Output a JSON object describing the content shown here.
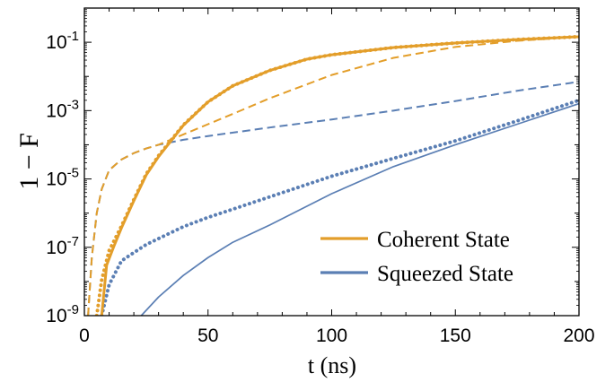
{
  "chart_data": {
    "type": "line",
    "title": "",
    "xlabel": "t (ns)",
    "ylabel": "1 − F",
    "xlim": [
      0,
      200
    ],
    "ylim_log10": [
      -9,
      0
    ],
    "yscale": "log",
    "x_ticks": [
      0,
      50,
      100,
      150,
      200
    ],
    "x_tick_labels": [
      "0",
      "50",
      "100",
      "150",
      "200"
    ],
    "y_ticks_log10": [
      -9,
      -7,
      -5,
      -3,
      -1
    ],
    "y_tick_labels": [
      "10-9",
      "10-7",
      "10-5",
      "10-3",
      "10-1"
    ],
    "legend_position": "bottom-right",
    "legend": [
      {
        "label": "Coherent State",
        "color": "#E39E2A"
      },
      {
        "label": "Squeezed State",
        "color": "#5B7FB4"
      }
    ],
    "series": [
      {
        "name": "Coherent State",
        "color": "#E39E2A",
        "style": "solid",
        "x": [
          7,
          9,
          12,
          15,
          20,
          25,
          30,
          40,
          50,
          60,
          75,
          90,
          100,
          125,
          150,
          175,
          200
        ],
        "y": [
          1e-09,
          3e-08,
          1.1e-07,
          3.7e-07,
          2.3e-06,
          1.3e-05,
          4.5e-05,
          0.00037,
          0.0018,
          0.0053,
          0.015,
          0.032,
          0.043,
          0.07,
          0.095,
          0.12,
          0.145
        ]
      },
      {
        "name": "",
        "color": "#E39E2A",
        "style": "dotted",
        "x": [
          5,
          7,
          10,
          15,
          20,
          25,
          30,
          40,
          50,
          60,
          75,
          90,
          100,
          125,
          150,
          175,
          200
        ],
        "y": [
          1e-09,
          1.1e-08,
          8e-08,
          4.2e-07,
          2.5e-06,
          1.4e-05,
          4.8e-05,
          0.00038,
          0.0018,
          0.0053,
          0.015,
          0.032,
          0.043,
          0.07,
          0.095,
          0.12,
          0.145
        ]
      },
      {
        "name": "",
        "color": "#E39E2A",
        "style": "dashed",
        "x": [
          1.5,
          3,
          5,
          7,
          10,
          15,
          20,
          25,
          30,
          40,
          50,
          60,
          75,
          100,
          125,
          150,
          175,
          200
        ],
        "y": [
          1e-09,
          5e-08,
          1e-06,
          5e-06,
          1.8e-05,
          3.7e-05,
          5.7e-05,
          7.8e-05,
          0.0001,
          0.0002,
          0.0004,
          0.0008,
          0.0023,
          0.011,
          0.035,
          0.073,
          0.11,
          0.145
        ]
      },
      {
        "name": "Squeezed State",
        "color": "#5B7FB4",
        "style": "solid",
        "x": [
          23,
          30,
          40,
          50,
          60,
          75,
          100,
          125,
          150,
          175,
          200
        ],
        "y": [
          1e-09,
          3.5e-09,
          1.5e-08,
          5e-08,
          1.4e-07,
          4.5e-07,
          3.7e-06,
          2.3e-05,
          0.0001,
          0.0004,
          0.0016
        ]
      },
      {
        "name": "",
        "color": "#5B7FB4",
        "style": "dotted",
        "x": [
          7,
          10,
          15,
          20,
          25,
          30,
          40,
          50,
          60,
          75,
          100,
          125,
          150,
          175,
          200
        ],
        "y": [
          1e-09,
          8e-09,
          4e-08,
          7e-08,
          1.2e-07,
          1.8e-07,
          4e-07,
          7.5e-07,
          1.3e-06,
          3e-06,
          1.2e-05,
          4e-05,
          0.00013,
          0.0005,
          0.002
        ]
      },
      {
        "name": "",
        "color": "#5B7FB4",
        "style": "dashed",
        "x": [
          1.5,
          3,
          5,
          7,
          10,
          15,
          20,
          25,
          30,
          40,
          50,
          75,
          100,
          125,
          150,
          175,
          200
        ],
        "y": [
          1e-09,
          5e-08,
          1e-06,
          5e-06,
          1.8e-05,
          3.7e-05,
          5.7e-05,
          7.8e-05,
          0.0001,
          0.00014,
          0.00018,
          0.00032,
          0.00055,
          0.001,
          0.0019,
          0.0038,
          0.007
        ]
      }
    ]
  }
}
